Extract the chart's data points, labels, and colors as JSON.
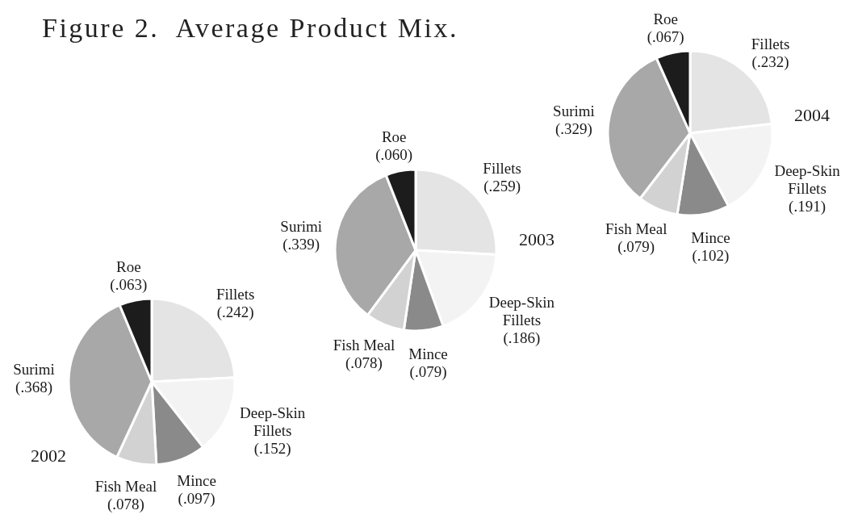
{
  "chart_data": [
    {
      "type": "pie",
      "title": "2002",
      "annotations": [
        "Figure 2.  Average Product Mix."
      ],
      "categories": [
        "Fillets",
        "Deep-Skin Fillets",
        "Mince",
        "Fish Meal",
        "Surimi",
        "Roe"
      ],
      "values": [
        0.242,
        0.152,
        0.097,
        0.078,
        0.368,
        0.063
      ],
      "value_labels": [
        "(.242)",
        "(.152)",
        "(.097)",
        "(.078)",
        "(.368)",
        "(.063)"
      ],
      "colors": [
        "#e4e4e4",
        "#f3f3f3",
        "#8a8a8a",
        "#d2d2d2",
        "#a8a8a8",
        "#1c1c1c"
      ]
    },
    {
      "type": "pie",
      "title": "2003",
      "categories": [
        "Fillets",
        "Deep-Skin Fillets",
        "Mince",
        "Fish Meal",
        "Surimi",
        "Roe"
      ],
      "values": [
        0.259,
        0.186,
        0.079,
        0.078,
        0.339,
        0.06
      ],
      "value_labels": [
        "(.259)",
        "(.186)",
        "(.079)",
        "(.078)",
        "(.339)",
        "(.060)"
      ],
      "colors": [
        "#e4e4e4",
        "#f3f3f3",
        "#8a8a8a",
        "#d2d2d2",
        "#a8a8a8",
        "#1c1c1c"
      ]
    },
    {
      "type": "pie",
      "title": "2004",
      "categories": [
        "Fillets",
        "Deep-Skin Fillets",
        "Mince",
        "Fish Meal",
        "Surimi",
        "Roe"
      ],
      "values": [
        0.232,
        0.191,
        0.102,
        0.079,
        0.329,
        0.067
      ],
      "value_labels": [
        "(.232)",
        "(.191)",
        "(.102)",
        "(.079)",
        "(.329)",
        "(.067)"
      ],
      "colors": [
        "#e4e4e4",
        "#f3f3f3",
        "#8a8a8a",
        "#d2d2d2",
        "#a8a8a8",
        "#1c1c1c"
      ]
    }
  ]
}
